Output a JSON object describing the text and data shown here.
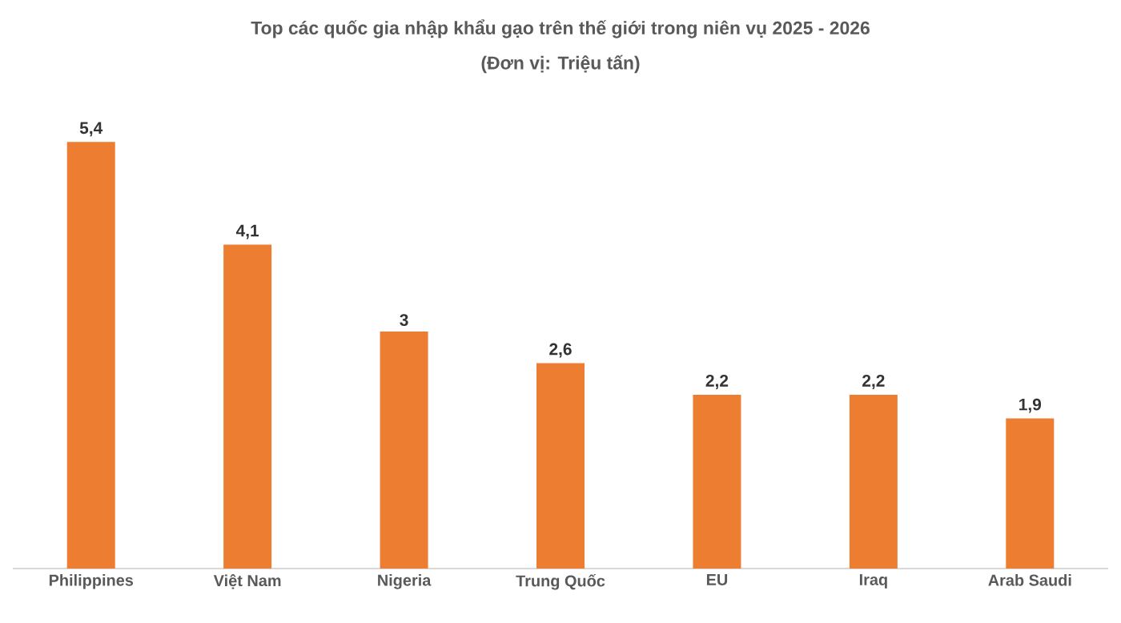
{
  "chart_data": {
    "type": "bar",
    "title": "Top các quốc gia nhập khẩu gạo trên thế giới trong niên vụ 2025 - 2026",
    "subtitle": "(Đơn vị: Triệu tấn)",
    "categories": [
      "Philippines",
      "Việt Nam",
      "Nigeria",
      "Trung Quốc",
      "EU",
      "Iraq",
      "Arab Saudi"
    ],
    "values": [
      5.4,
      4.1,
      3,
      2.6,
      2.2,
      2.2,
      1.9
    ],
    "value_labels": [
      "5,4",
      "4,1",
      "3",
      "2,6",
      "2,2",
      "2,2",
      "1,9"
    ],
    "color": "#ed7d31"
  }
}
